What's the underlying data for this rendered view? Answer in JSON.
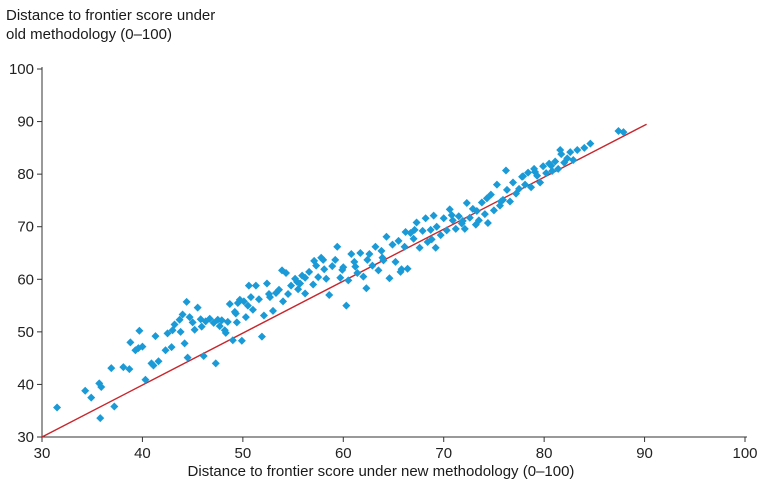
{
  "chart_data": {
    "type": "scatter",
    "ylabel_lines": [
      "Distance to frontier score under",
      "old methodology (0–100)"
    ],
    "xlabel": "Distance to frontier score under new methodology (0–100)",
    "xlim": [
      30,
      100
    ],
    "ylim": [
      30,
      100
    ],
    "xticks": [
      "30",
      "40",
      "50",
      "60",
      "70",
      "80",
      "90",
      "100"
    ],
    "yticks": [
      "30",
      "40",
      "50",
      "60",
      "70",
      "80",
      "90",
      "100"
    ],
    "grid": false,
    "colors": {
      "points": "#1a9ad6",
      "reference_line": "#c8262c",
      "axis": "#333333"
    },
    "reference_line": {
      "x": [
        30,
        90.2
      ],
      "y": [
        30,
        89.5
      ]
    },
    "points": [
      [
        31.5,
        35.6
      ],
      [
        34.3,
        38.8
      ],
      [
        34.9,
        37.5
      ],
      [
        35.7,
        40.2
      ],
      [
        35.9,
        39.5
      ],
      [
        35.8,
        33.6
      ],
      [
        36.9,
        43.1
      ],
      [
        37.2,
        35.8
      ],
      [
        38.1,
        43.3
      ],
      [
        38.7,
        42.9
      ],
      [
        38.8,
        48.0
      ],
      [
        39.3,
        46.5
      ],
      [
        39.6,
        46.9
      ],
      [
        39.7,
        50.2
      ],
      [
        40.0,
        47.2
      ],
      [
        40.3,
        40.9
      ],
      [
        40.9,
        44.0
      ],
      [
        41.3,
        49.2
      ],
      [
        41.6,
        44.4
      ],
      [
        42.3,
        46.5
      ],
      [
        42.5,
        49.7
      ],
      [
        43.0,
        50.3
      ],
      [
        43.2,
        51.4
      ],
      [
        43.7,
        52.3
      ],
      [
        43.8,
        50.0
      ],
      [
        44.0,
        53.3
      ],
      [
        44.2,
        47.8
      ],
      [
        44.4,
        55.7
      ],
      [
        44.5,
        45.1
      ],
      [
        44.7,
        52.8
      ],
      [
        45.0,
        51.8
      ],
      [
        45.2,
        50.4
      ],
      [
        45.5,
        54.6
      ],
      [
        45.9,
        51.0
      ],
      [
        46.3,
        52.0
      ],
      [
        46.7,
        52.5
      ],
      [
        47.1,
        51.7
      ],
      [
        47.3,
        44.0
      ],
      [
        47.5,
        52.3
      ],
      [
        47.7,
        51.1
      ],
      [
        47.9,
        52.2
      ],
      [
        48.2,
        50.3
      ],
      [
        48.5,
        51.9
      ],
      [
        48.7,
        55.3
      ],
      [
        49.0,
        48.4
      ],
      [
        49.3,
        53.5
      ],
      [
        49.4,
        51.8
      ],
      [
        49.5,
        55.5
      ],
      [
        49.7,
        56.1
      ],
      [
        49.9,
        48.3
      ],
      [
        50.1,
        55.8
      ],
      [
        50.3,
        52.8
      ],
      [
        50.5,
        55.0
      ],
      [
        50.8,
        56.6
      ],
      [
        51.0,
        54.2
      ],
      [
        51.3,
        58.8
      ],
      [
        51.6,
        56.2
      ],
      [
        51.9,
        49.1
      ],
      [
        52.1,
        53.1
      ],
      [
        52.4,
        59.2
      ],
      [
        52.7,
        56.6
      ],
      [
        53.0,
        54.0
      ],
      [
        53.3,
        57.4
      ],
      [
        53.6,
        58.0
      ],
      [
        54.0,
        55.8
      ],
      [
        54.3,
        61.2
      ],
      [
        54.5,
        57.2
      ],
      [
        54.8,
        58.8
      ],
      [
        55.2,
        60.1
      ],
      [
        55.4,
        59.5
      ],
      [
        55.7,
        59.2
      ],
      [
        55.9,
        60.7
      ],
      [
        56.2,
        57.3
      ],
      [
        56.6,
        61.4
      ],
      [
        57.0,
        59.0
      ],
      [
        57.3,
        62.6
      ],
      [
        57.5,
        60.4
      ],
      [
        57.8,
        64.1
      ],
      [
        58.1,
        61.9
      ],
      [
        58.3,
        60.1
      ],
      [
        58.6,
        57.0
      ],
      [
        58.9,
        62.5
      ],
      [
        59.2,
        63.7
      ],
      [
        59.4,
        66.2
      ],
      [
        59.7,
        60.3
      ],
      [
        60.0,
        62.3
      ],
      [
        60.3,
        55.0
      ],
      [
        60.5,
        59.8
      ],
      [
        60.8,
        64.8
      ],
      [
        61.1,
        63.3
      ],
      [
        61.4,
        61.2
      ],
      [
        61.7,
        65.0
      ],
      [
        62.0,
        60.5
      ],
      [
        62.3,
        58.3
      ],
      [
        62.6,
        64.8
      ],
      [
        62.9,
        62.6
      ],
      [
        63.2,
        66.2
      ],
      [
        63.5,
        61.7
      ],
      [
        63.8,
        65.4
      ],
      [
        64.0,
        63.6
      ],
      [
        64.3,
        68.1
      ],
      [
        64.6,
        60.2
      ],
      [
        64.9,
        66.6
      ],
      [
        65.2,
        63.3
      ],
      [
        65.5,
        67.3
      ],
      [
        65.8,
        61.9
      ],
      [
        66.1,
        66.2
      ],
      [
        66.4,
        62.0
      ],
      [
        66.7,
        68.8
      ],
      [
        67.0,
        67.7
      ],
      [
        67.3,
        70.8
      ],
      [
        67.6,
        66.0
      ],
      [
        67.9,
        69.2
      ],
      [
        68.2,
        71.6
      ],
      [
        68.4,
        67.1
      ],
      [
        68.7,
        69.4
      ],
      [
        69.0,
        72.1
      ],
      [
        69.3,
        70.0
      ],
      [
        69.7,
        68.4
      ],
      [
        70.0,
        71.6
      ],
      [
        70.3,
        69.3
      ],
      [
        70.6,
        73.3
      ],
      [
        70.9,
        71.2
      ],
      [
        71.2,
        69.6
      ],
      [
        71.5,
        72.0
      ],
      [
        71.8,
        70.6
      ],
      [
        72.1,
        69.6
      ],
      [
        72.3,
        74.5
      ],
      [
        72.6,
        71.7
      ],
      [
        72.9,
        73.4
      ],
      [
        73.2,
        70.4
      ],
      [
        73.5,
        71.2
      ],
      [
        73.8,
        74.6
      ],
      [
        74.1,
        72.4
      ],
      [
        74.4,
        70.7
      ],
      [
        74.7,
        76.1
      ],
      [
        75.0,
        73.1
      ],
      [
        75.3,
        78.0
      ],
      [
        75.6,
        74.0
      ],
      [
        75.9,
        75.1
      ],
      [
        76.3,
        77.0
      ],
      [
        76.6,
        74.8
      ],
      [
        76.9,
        78.4
      ],
      [
        77.2,
        76.3
      ],
      [
        77.5,
        77.2
      ],
      [
        77.8,
        79.5
      ],
      [
        78.1,
        78.0
      ],
      [
        78.4,
        80.3
      ],
      [
        78.7,
        77.5
      ],
      [
        79.0,
        81.0
      ],
      [
        79.3,
        79.7
      ],
      [
        79.6,
        78.4
      ],
      [
        79.9,
        81.5
      ],
      [
        80.2,
        80.2
      ],
      [
        80.5,
        82.0
      ],
      [
        80.8,
        80.6
      ],
      [
        81.1,
        82.4
      ],
      [
        81.4,
        81.0
      ],
      [
        81.7,
        83.8
      ],
      [
        82.0,
        82.2
      ],
      [
        82.3,
        83.0
      ],
      [
        82.6,
        84.2
      ],
      [
        82.9,
        82.7
      ],
      [
        83.3,
        84.6
      ],
      [
        84.0,
        85.0
      ],
      [
        84.6,
        85.8
      ],
      [
        87.4,
        88.2
      ],
      [
        87.9,
        88.0
      ],
      [
        76.2,
        80.7
      ],
      [
        74.3,
        75.4
      ],
      [
        65.7,
        61.4
      ],
      [
        61.2,
        62.4
      ],
      [
        58.0,
        63.7
      ],
      [
        56.2,
        60.3
      ],
      [
        53.9,
        61.7
      ],
      [
        50.6,
        58.8
      ],
      [
        48.3,
        49.8
      ],
      [
        46.1,
        45.4
      ],
      [
        42.9,
        47.1
      ],
      [
        41.1,
        43.6
      ],
      [
        73.3,
        73.0
      ],
      [
        70.8,
        72.2
      ],
      [
        69.2,
        66.0
      ],
      [
        67.1,
        69.4
      ],
      [
        63.9,
        64.1
      ],
      [
        62.4,
        63.7
      ],
      [
        59.9,
        61.8
      ],
      [
        57.1,
        63.5
      ],
      [
        55.5,
        58.1
      ],
      [
        52.6,
        57.2
      ],
      [
        49.2,
        53.8
      ],
      [
        45.8,
        52.4
      ],
      [
        79.1,
        80.4
      ],
      [
        80.7,
        81.6
      ],
      [
        81.6,
        84.6
      ],
      [
        77.9,
        79.6
      ],
      [
        75.7,
        74.8
      ],
      [
        71.9,
        71.1
      ],
      [
        68.8,
        67.6
      ],
      [
        66.2,
        69.0
      ]
    ]
  }
}
